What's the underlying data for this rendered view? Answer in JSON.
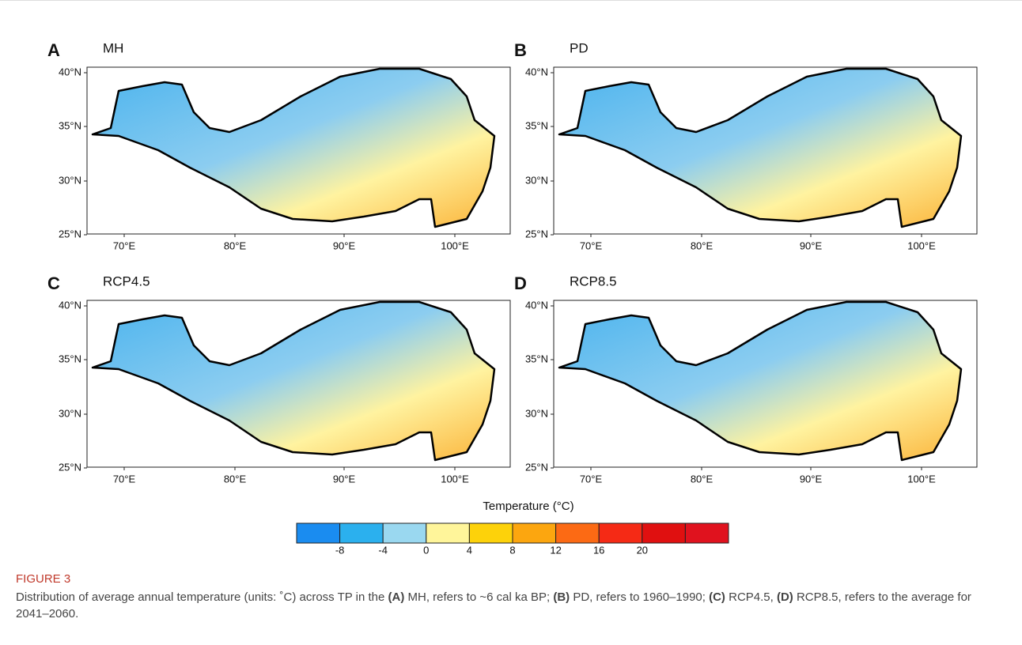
{
  "panels": [
    {
      "letter": "A",
      "title": "MH"
    },
    {
      "letter": "B",
      "title": "PD"
    },
    {
      "letter": "C",
      "title": "RCP4.5"
    },
    {
      "letter": "D",
      "title": "RCP8.5"
    }
  ],
  "lat_ticks": [
    "40°N",
    "35°N",
    "30°N",
    "25°N"
  ],
  "lon_ticks": [
    "70°E",
    "80°E",
    "90°E",
    "100°E"
  ],
  "colorbar": {
    "title": "Temperature (°C)",
    "labels": [
      "-8",
      "-4",
      "0",
      "4",
      "8",
      "12",
      "16",
      "20"
    ],
    "colors": [
      "#1a8cf0",
      "#2bb0ee",
      "#9ad8f0",
      "#fff59a",
      "#fdd20a",
      "#fca60f",
      "#fc6a14",
      "#f52a15",
      "#e01010",
      "#e0121e"
    ]
  },
  "caption": {
    "label": "FIGURE 3",
    "parts": [
      {
        "text": "Distribution of average annual temperature (units: ˚C) across TP in the ",
        "bold": false
      },
      {
        "text": "(A)",
        "bold": true
      },
      {
        "text": " MH, refers to ~6 cal ka BP; ",
        "bold": false
      },
      {
        "text": "(B)",
        "bold": true
      },
      {
        "text": " PD, refers to 1960–1990; ",
        "bold": false
      },
      {
        "text": "(C)",
        "bold": true
      },
      {
        "text": " RCP4.5, ",
        "bold": false
      },
      {
        "text": "(D)",
        "bold": true
      },
      {
        "text": " RCP8.5, refers to the average for 2041–2060.",
        "bold": false
      }
    ]
  }
}
